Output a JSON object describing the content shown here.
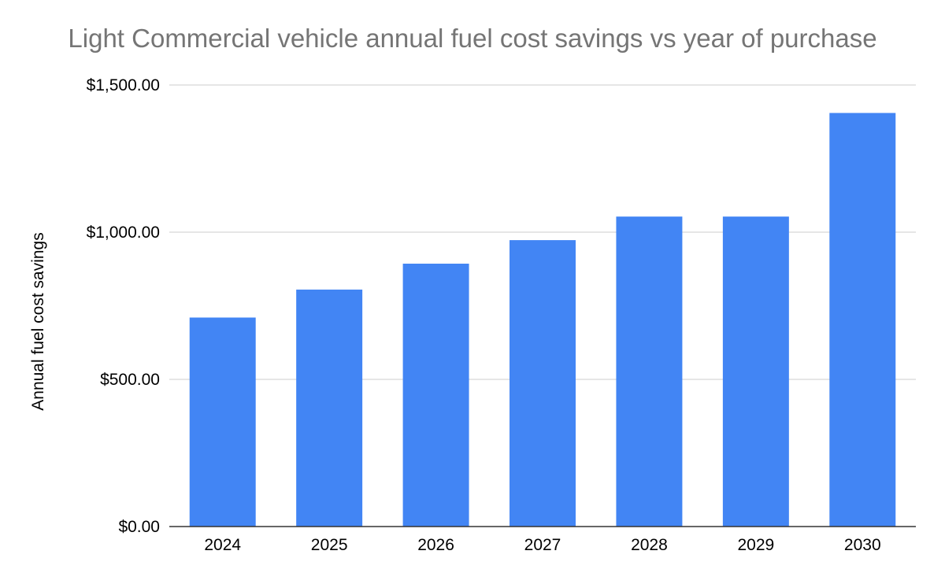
{
  "chart_data": {
    "type": "bar",
    "title": "Light Commercial vehicle annual fuel cost savings vs year of purchase",
    "xlabel": "",
    "ylabel": "Annual fuel cost savings",
    "categories": [
      "2024",
      "2025",
      "2026",
      "2027",
      "2028",
      "2029",
      "2030"
    ],
    "values": [
      710,
      805,
      893,
      973,
      1053,
      1053,
      1405
    ],
    "ylim": [
      0,
      1500
    ],
    "yticks": [
      0,
      500,
      1000,
      1500
    ],
    "ytick_labels": [
      "$0.00",
      "$500.00",
      "$1,000.00",
      "$1,500.00"
    ],
    "grid": true,
    "legend": "none",
    "bar_color": "#4285f4",
    "gridline_color": "#cccccc",
    "axis_color": "#333333"
  }
}
